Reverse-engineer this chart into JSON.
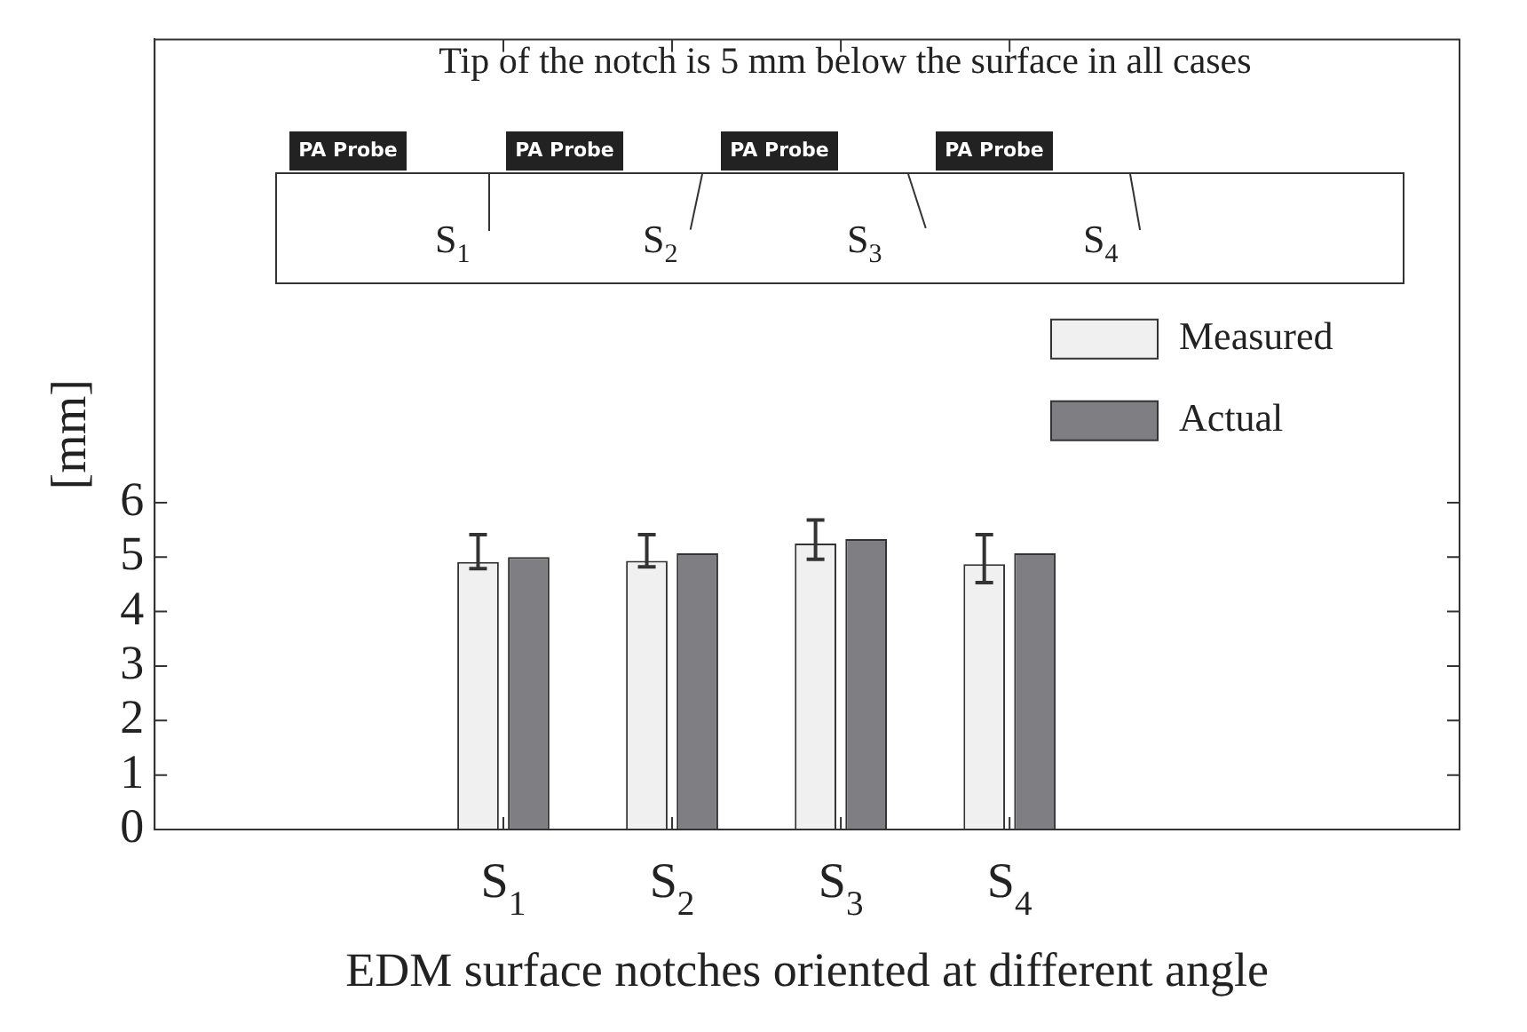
{
  "chart_data": {
    "type": "bar",
    "title": "Tip of the notch is 5 mm below the surface in all cases",
    "xlabel": "EDM surface notches oriented at different angle",
    "ylabel": "[mm]",
    "categories": [
      "S$_{1}$",
      "S$_{2}$",
      "S$_{3}$",
      "S$_{4}$"
    ],
    "series": [
      {
        "name": "Measured",
        "color": "#eff0ef",
        "values": [
          4.91,
          4.93,
          5.25,
          4.87
        ],
        "errors": [
          [
            4.79,
            5.41
          ],
          [
            4.82,
            5.41
          ],
          [
            4.96,
            5.68
          ],
          [
            4.53,
            5.41
          ]
        ]
      },
      {
        "name": "Actual",
        "color": "#7f7f83",
        "values": [
          5.0,
          5.07,
          5.33,
          5.07
        ]
      }
    ],
    "ylim": [
      0,
      14.5
    ],
    "yticks": [
      0,
      1,
      2,
      3,
      4,
      5,
      6
    ],
    "grid": false,
    "legend": "right",
    "annotations": [
      "PA Probe",
      "PA Probe",
      "PA Probe",
      "PA Probe"
    ]
  }
}
